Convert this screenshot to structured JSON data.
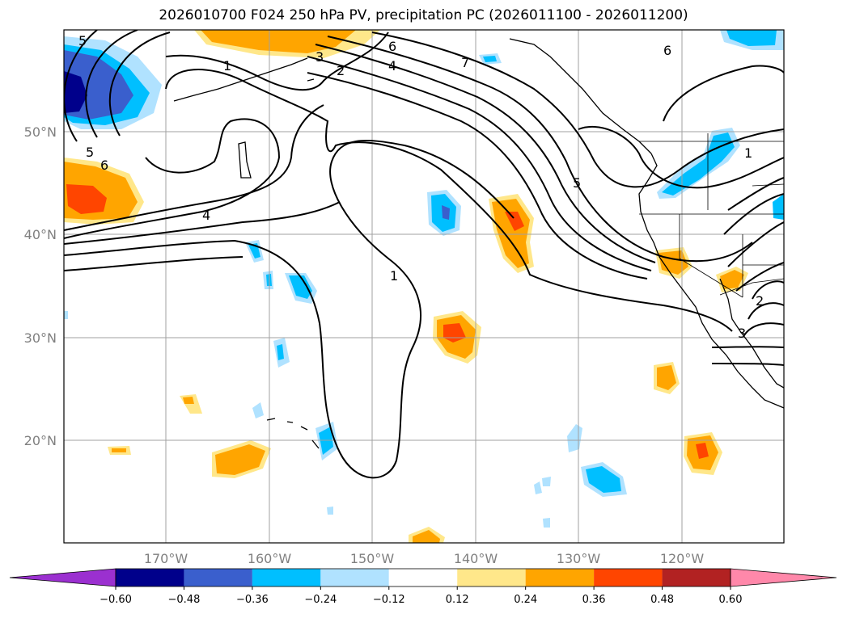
{
  "title": "2026010700 F024 250 hPa PV, precipitation PC (2026011100 - 2026011200)",
  "lat_labels": [
    "50°N",
    "40°N",
    "30°N",
    "20°N"
  ],
  "lon_labels": [
    "170°W",
    "160°W",
    "150°W",
    "140°W",
    "130°W",
    "120°W"
  ],
  "colorbar": {
    "tick_labels": [
      "−0.60",
      "−0.48",
      "−0.36",
      "−0.24",
      "−0.12",
      "0.12",
      "0.24",
      "0.36",
      "0.48",
      "0.60"
    ],
    "tick_values": [
      -0.6,
      -0.48,
      -0.36,
      -0.24,
      -0.12,
      0.12,
      0.24,
      0.36,
      0.48,
      0.6
    ],
    "colors": [
      "#9b30d0",
      "#00008b",
      "#3a5fcd",
      "#00bfff",
      "#b0e2ff",
      "#ffffff",
      "#ffe78a",
      "#ffa500",
      "#ff4500",
      "#b22222",
      "#ff88aa"
    ],
    "extend": "both"
  },
  "contour_labels": [
    "5",
    "1",
    "3",
    "2",
    "6",
    "4",
    "7",
    "6",
    "5",
    "6",
    "4",
    "1",
    "5",
    "1",
    "2",
    "3"
  ],
  "colors": {
    "grid": "#a0a0a0",
    "coast": "#000000",
    "contour": "#000000"
  }
}
